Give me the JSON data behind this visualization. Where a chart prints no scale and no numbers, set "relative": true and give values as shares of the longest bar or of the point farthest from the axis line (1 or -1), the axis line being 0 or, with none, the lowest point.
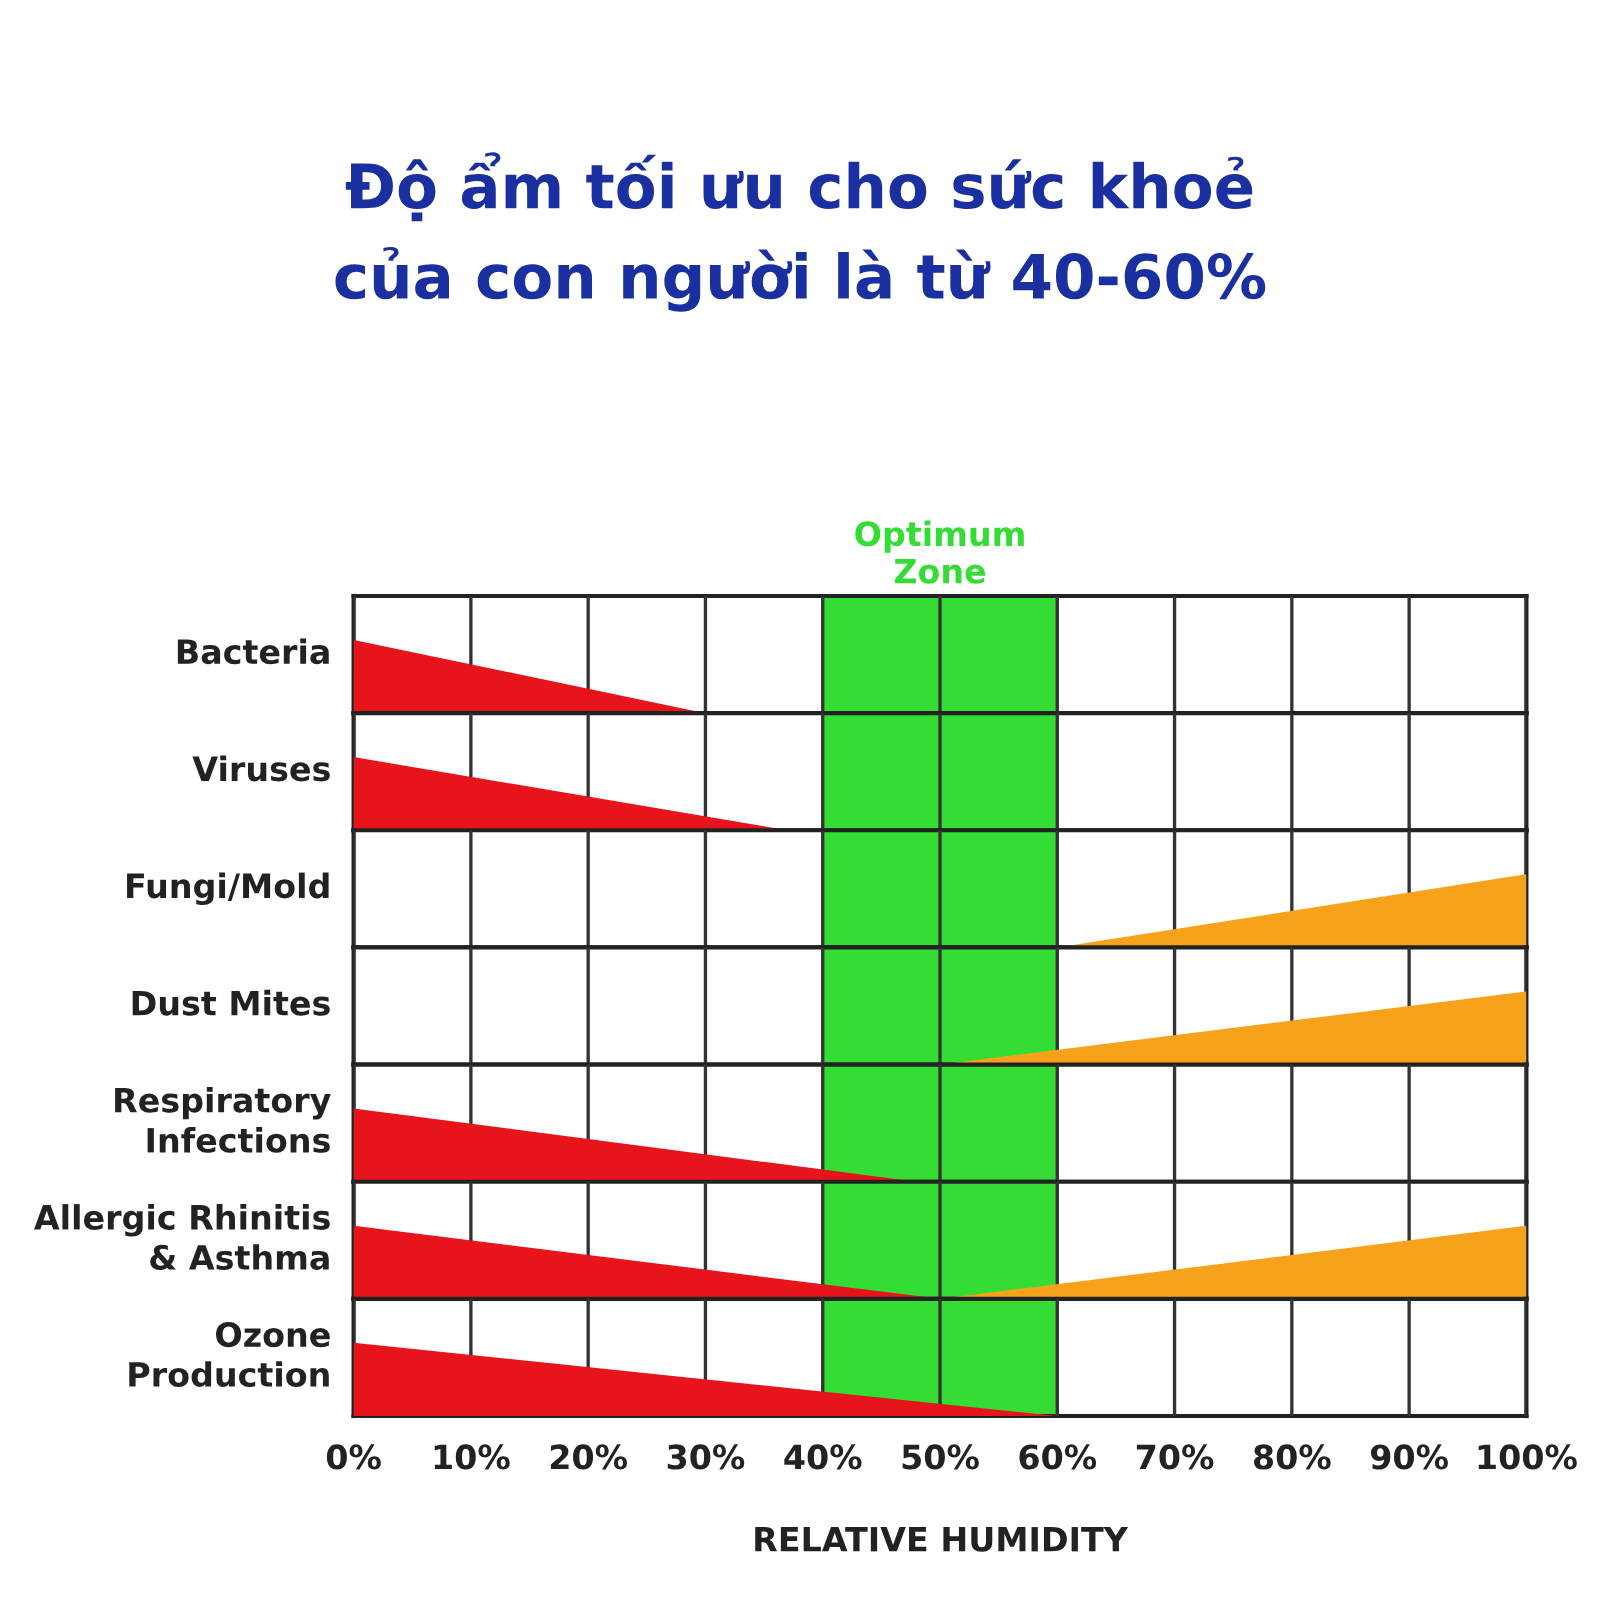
{
  "chart_data": [
    {
      "type": "area",
      "title": "Độ ẩm tối ưu cho sức khoẻ\ncủa con người là từ 40-60%",
      "ylabel": "Bacteria",
      "relative": true,
      "xlim": [
        0,
        100
      ],
      "xticks": [
        0,
        10,
        20,
        30,
        40,
        50,
        60,
        70,
        80,
        90,
        100
      ],
      "tick_labels": false,
      "grid": "x",
      "bands": [
        {
          "axis": "x",
          "from": 40,
          "to": 60,
          "label": "Optimum\nZone",
          "color": "#33dd33"
        }
      ],
      "series": [
        {
          "color": "#e8141c",
          "x": [
            0,
            30
          ],
          "values": [
            1,
            0
          ]
        }
      ]
    },
    {
      "type": "area",
      "ylabel": "Viruses",
      "relative": true,
      "xlim": [
        0,
        100
      ],
      "xticks": [
        0,
        10,
        20,
        30,
        40,
        50,
        60,
        70,
        80,
        90,
        100
      ],
      "tick_labels": false,
      "grid": "x",
      "bands": [
        {
          "axis": "x",
          "from": 40,
          "to": 60,
          "color": "#33dd33"
        }
      ],
      "series": [
        {
          "color": "#e8141c",
          "x": [
            0,
            37
          ],
          "values": [
            1,
            0
          ]
        }
      ]
    },
    {
      "type": "area",
      "ylabel": "Fungi/Mold",
      "relative": true,
      "xlim": [
        0,
        100
      ],
      "xticks": [
        0,
        10,
        20,
        30,
        40,
        50,
        60,
        70,
        80,
        90,
        100
      ],
      "tick_labels": false,
      "grid": "x",
      "bands": [
        {
          "axis": "x",
          "from": 40,
          "to": 60,
          "color": "#33dd33"
        }
      ],
      "series": [
        {
          "color": "#f7a21b",
          "x": [
            60,
            100
          ],
          "values": [
            0,
            1
          ]
        }
      ]
    },
    {
      "type": "area",
      "ylabel": "Dust Mites",
      "relative": true,
      "xlim": [
        0,
        100
      ],
      "xticks": [
        0,
        10,
        20,
        30,
        40,
        50,
        60,
        70,
        80,
        90,
        100
      ],
      "tick_labels": false,
      "grid": "x",
      "bands": [
        {
          "axis": "x",
          "from": 40,
          "to": 60,
          "color": "#33dd33"
        }
      ],
      "series": [
        {
          "color": "#f7a21b",
          "x": [
            50,
            100
          ],
          "values": [
            0,
            1
          ]
        }
      ]
    },
    {
      "type": "area",
      "ylabel": "Respiratory\nInfections",
      "relative": true,
      "xlim": [
        0,
        100
      ],
      "xticks": [
        0,
        10,
        20,
        30,
        40,
        50,
        60,
        70,
        80,
        90,
        100
      ],
      "tick_labels": false,
      "grid": "x",
      "bands": [
        {
          "axis": "x",
          "from": 40,
          "to": 60,
          "color": "#33dd33"
        }
      ],
      "series": [
        {
          "color": "#e8141c",
          "x": [
            0,
            48
          ],
          "values": [
            1,
            0
          ]
        }
      ]
    },
    {
      "type": "area",
      "ylabel": "Allergic Rhinitis\n& Asthma",
      "relative": true,
      "xlim": [
        0,
        100
      ],
      "xticks": [
        0,
        10,
        20,
        30,
        40,
        50,
        60,
        70,
        80,
        90,
        100
      ],
      "tick_labels": false,
      "grid": "x",
      "bands": [
        {
          "axis": "x",
          "from": 40,
          "to": 60,
          "color": "#33dd33"
        }
      ],
      "series": [
        {
          "color": "#e8141c",
          "x": [
            0,
            50
          ],
          "values": [
            1,
            0
          ]
        },
        {
          "color": "#f7a21b",
          "x": [
            50,
            100
          ],
          "values": [
            0,
            1
          ]
        }
      ]
    },
    {
      "type": "area",
      "ylabel": "Ozone\nProduction",
      "xlabel": "RELATIVE HUMIDITY",
      "relative": true,
      "xlim": [
        0,
        100
      ],
      "xticks": [
        {
          "value": 0,
          "label": "0%"
        },
        {
          "value": 10,
          "label": "10%"
        },
        {
          "value": 20,
          "label": "20%"
        },
        {
          "value": 30,
          "label": "30%"
        },
        {
          "value": 40,
          "label": "40%"
        },
        {
          "value": 50,
          "label": "50%"
        },
        {
          "value": 60,
          "label": "60%"
        },
        {
          "value": 70,
          "label": "70%"
        },
        {
          "value": 80,
          "label": "80%"
        },
        {
          "value": 90,
          "label": "90%"
        },
        {
          "value": 100,
          "label": "100%"
        }
      ],
      "tick_labels": "x",
      "grid": "x",
      "bands": [
        {
          "axis": "x",
          "from": 40,
          "to": 60,
          "color": "#33dd33"
        }
      ],
      "series": [
        {
          "color": "#e8141c",
          "x": [
            0,
            60
          ],
          "values": [
            1,
            0
          ]
        }
      ]
    }
  ]
}
